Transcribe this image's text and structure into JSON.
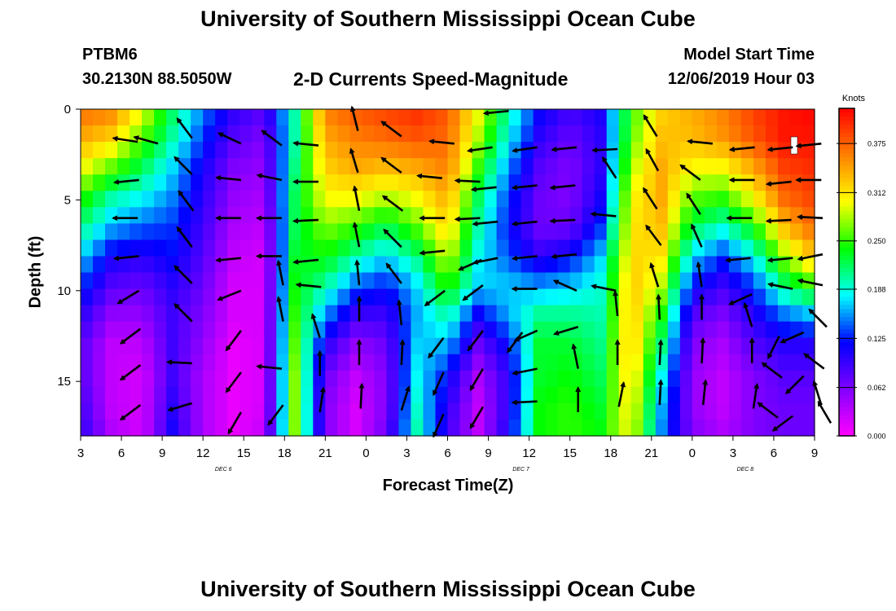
{
  "header": {
    "title": "University of Southern Mississippi Ocean Cube",
    "station": "PTBM6",
    "coords": "30.2130N 88.5050W",
    "plot_title": "2-D Currents Speed-Magnitude",
    "model_start_label": "Model Start Time",
    "model_start_value": "12/06/2019 Hour 03"
  },
  "footer": {
    "title": "University of Southern Mississippi Ocean Cube"
  },
  "chart_data": {
    "type": "heatmap",
    "title": "2-D Currents Speed-Magnitude",
    "xlabel": "Forecast Time(Z)",
    "ylabel": "Depth (ft)",
    "x_ticks": [
      "3",
      "6",
      "9",
      "12",
      "15",
      "18",
      "21",
      "0",
      "3",
      "6",
      "9",
      "12",
      "15",
      "18",
      "21",
      "0",
      "3",
      "6",
      "9"
    ],
    "date_labels": [
      {
        "label": "DEC 6",
        "tick_index": 3.5
      },
      {
        "label": "DEC 7",
        "tick_index": 10.8
      },
      {
        "label": "DEC 8",
        "tick_index": 16.3
      }
    ],
    "y_ticks": [
      0,
      5,
      10,
      15
    ],
    "ylim": [
      0,
      18
    ],
    "y_reversed": true,
    "colorbar": {
      "unit": "Knots",
      "ticks": [
        "0.000",
        "0.062",
        "0.125",
        "0.188",
        "0.250",
        "0.312",
        "0.375"
      ],
      "range": [
        0,
        0.42
      ],
      "colors": [
        "#ff00ff",
        "#8000ff",
        "#0000ff",
        "#00ffff",
        "#00ff00",
        "#ffff00",
        "#ff8000",
        "#ff0000"
      ]
    },
    "speed_rows": [
      [
        0.37,
        0.36,
        0.3,
        0.22,
        0.15,
        0.1,
        0.08,
        0.2,
        0.36,
        0.38,
        0.39,
        0.4,
        0.38,
        0.3,
        0.2,
        0.12,
        0.09,
        0.11,
        0.25,
        0.32,
        0.34,
        0.36,
        0.39,
        0.41,
        0.42
      ],
      [
        0.34,
        0.32,
        0.26,
        0.2,
        0.13,
        0.08,
        0.06,
        0.2,
        0.34,
        0.36,
        0.37,
        0.38,
        0.37,
        0.28,
        0.18,
        0.1,
        0.07,
        0.1,
        0.26,
        0.33,
        0.33,
        0.35,
        0.38,
        0.41,
        0.41
      ],
      [
        0.3,
        0.26,
        0.22,
        0.17,
        0.11,
        0.06,
        0.05,
        0.21,
        0.32,
        0.34,
        0.33,
        0.34,
        0.36,
        0.25,
        0.15,
        0.08,
        0.06,
        0.1,
        0.28,
        0.34,
        0.3,
        0.3,
        0.34,
        0.39,
        0.4
      ],
      [
        0.25,
        0.2,
        0.18,
        0.15,
        0.1,
        0.05,
        0.04,
        0.22,
        0.3,
        0.3,
        0.28,
        0.3,
        0.34,
        0.22,
        0.13,
        0.07,
        0.06,
        0.11,
        0.3,
        0.34,
        0.26,
        0.25,
        0.3,
        0.37,
        0.39
      ],
      [
        0.21,
        0.16,
        0.14,
        0.13,
        0.09,
        0.04,
        0.03,
        0.22,
        0.27,
        0.25,
        0.22,
        0.26,
        0.32,
        0.2,
        0.12,
        0.07,
        0.07,
        0.13,
        0.31,
        0.33,
        0.22,
        0.19,
        0.24,
        0.33,
        0.37
      ],
      [
        0.17,
        0.11,
        0.1,
        0.12,
        0.08,
        0.03,
        0.02,
        0.23,
        0.24,
        0.2,
        0.17,
        0.21,
        0.29,
        0.18,
        0.14,
        0.1,
        0.12,
        0.17,
        0.32,
        0.31,
        0.17,
        0.13,
        0.18,
        0.27,
        0.33
      ],
      [
        0.13,
        0.08,
        0.07,
        0.1,
        0.07,
        0.02,
        0.02,
        0.24,
        0.2,
        0.14,
        0.12,
        0.17,
        0.25,
        0.17,
        0.17,
        0.16,
        0.17,
        0.19,
        0.33,
        0.28,
        0.12,
        0.09,
        0.13,
        0.21,
        0.25
      ],
      [
        0.1,
        0.05,
        0.05,
        0.09,
        0.06,
        0.02,
        0.02,
        0.25,
        0.15,
        0.09,
        0.09,
        0.16,
        0.2,
        0.11,
        0.16,
        0.21,
        0.21,
        0.2,
        0.33,
        0.24,
        0.08,
        0.06,
        0.1,
        0.14,
        0.16
      ],
      [
        0.08,
        0.03,
        0.03,
        0.09,
        0.05,
        0.01,
        0.02,
        0.26,
        0.1,
        0.05,
        0.07,
        0.17,
        0.16,
        0.07,
        0.12,
        0.23,
        0.23,
        0.21,
        0.33,
        0.21,
        0.06,
        0.04,
        0.08,
        0.1,
        0.1
      ],
      [
        0.08,
        0.03,
        0.02,
        0.09,
        0.04,
        0.01,
        0.02,
        0.27,
        0.07,
        0.03,
        0.06,
        0.18,
        0.12,
        0.04,
        0.1,
        0.23,
        0.24,
        0.22,
        0.32,
        0.18,
        0.05,
        0.03,
        0.06,
        0.08,
        0.08
      ],
      [
        0.09,
        0.03,
        0.02,
        0.1,
        0.04,
        0.01,
        0.02,
        0.27,
        0.06,
        0.02,
        0.06,
        0.19,
        0.1,
        0.03,
        0.1,
        0.24,
        0.25,
        0.23,
        0.31,
        0.16,
        0.05,
        0.03,
        0.06,
        0.07,
        0.07
      ],
      [
        0.1,
        0.04,
        0.02,
        0.11,
        0.04,
        0.01,
        0.03,
        0.27,
        0.06,
        0.02,
        0.07,
        0.2,
        0.09,
        0.03,
        0.11,
        0.24,
        0.25,
        0.24,
        0.3,
        0.15,
        0.06,
        0.04,
        0.06,
        0.07,
        0.07
      ]
    ]
  },
  "icons": {
    "arrow": "vector-arrow-icon",
    "ice_marker": "white-marker"
  },
  "vector_arrows": [
    {
      "t": 4.2,
      "d": 1.8,
      "dx": -1,
      "dy": -0.15
    },
    {
      "t": 5.7,
      "d": 1.9,
      "dx": -0.9,
      "dy": -0.25
    },
    {
      "t": 8.2,
      "d": 1.6,
      "dx": -0.6,
      "dy": -0.8
    },
    {
      "t": 11.8,
      "d": 1.9,
      "dx": -0.85,
      "dy": -0.4
    },
    {
      "t": 14.8,
      "d": 2.0,
      "dx": -0.8,
      "dy": -0.6
    },
    {
      "t": 17.5,
      "d": 2.0,
      "dx": -1,
      "dy": -0.1
    },
    {
      "t": 20.4,
      "d": 1.2,
      "dx": -0.25,
      "dy": -1
    },
    {
      "t": 23.6,
      "d": 1.5,
      "dx": -0.8,
      "dy": -0.6
    },
    {
      "t": 27.5,
      "d": 1.9,
      "dx": -1,
      "dy": -0.1
    },
    {
      "t": 30.3,
      "d": 2.1,
      "dx": -1,
      "dy": 0.15
    },
    {
      "t": 31.5,
      "d": 0.1,
      "dx": -1,
      "dy": 0.1
    },
    {
      "t": 33.6,
      "d": 2.1,
      "dx": -1,
      "dy": 0.15
    },
    {
      "t": 36.5,
      "d": 2.1,
      "dx": -1,
      "dy": 0.1
    },
    {
      "t": 39.5,
      "d": 2.2,
      "dx": -1,
      "dy": 0.05
    },
    {
      "t": 42.4,
      "d": 1.5,
      "dx": -0.55,
      "dy": -0.9
    },
    {
      "t": 46.5,
      "d": 1.9,
      "dx": -1,
      "dy": -0.1
    },
    {
      "t": 49.6,
      "d": 2.1,
      "dx": -1,
      "dy": 0.1
    },
    {
      "t": 52.4,
      "d": 2.1,
      "dx": -1,
      "dy": 0.1
    },
    {
      "t": 54.5,
      "d": 1.9,
      "dx": -1,
      "dy": 0.1
    },
    {
      "t": 4.3,
      "d": 3.9,
      "dx": -1,
      "dy": 0.1
    },
    {
      "t": 8.2,
      "d": 3.6,
      "dx": -0.7,
      "dy": -0.7
    },
    {
      "t": 11.8,
      "d": 3.9,
      "dx": -1,
      "dy": -0.1
    },
    {
      "t": 14.8,
      "d": 3.9,
      "dx": -1,
      "dy": -0.2
    },
    {
      "t": 17.5,
      "d": 4.0,
      "dx": -1,
      "dy": 0
    },
    {
      "t": 20.4,
      "d": 3.5,
      "dx": -0.3,
      "dy": -1
    },
    {
      "t": 23.6,
      "d": 3.5,
      "dx": -0.8,
      "dy": -0.6
    },
    {
      "t": 26.6,
      "d": 3.8,
      "dx": -1,
      "dy": -0.1
    },
    {
      "t": 29.4,
      "d": 4.0,
      "dx": -1,
      "dy": -0.05
    },
    {
      "t": 30.6,
      "d": 4.3,
      "dx": -1,
      "dy": 0.1
    },
    {
      "t": 33.6,
      "d": 4.2,
      "dx": -1,
      "dy": 0.1
    },
    {
      "t": 36.4,
      "d": 4.2,
      "dx": -1,
      "dy": 0.1
    },
    {
      "t": 39.4,
      "d": 3.8,
      "dx": -0.55,
      "dy": -0.85
    },
    {
      "t": 42.5,
      "d": 3.4,
      "dx": -0.5,
      "dy": -0.9
    },
    {
      "t": 45.6,
      "d": 3.9,
      "dx": -0.8,
      "dy": -0.6
    },
    {
      "t": 49.6,
      "d": 3.9,
      "dx": -1,
      "dy": 0
    },
    {
      "t": 52.3,
      "d": 4.0,
      "dx": -1,
      "dy": 0.1
    },
    {
      "t": 54.5,
      "d": 3.9,
      "dx": -1,
      "dy": 0
    },
    {
      "t": 4.2,
      "d": 6.0,
      "dx": -1,
      "dy": 0
    },
    {
      "t": 8.3,
      "d": 5.6,
      "dx": -0.6,
      "dy": -0.8
    },
    {
      "t": 11.8,
      "d": 6.0,
      "dx": -1,
      "dy": 0
    },
    {
      "t": 14.8,
      "d": 6.0,
      "dx": -1,
      "dy": 0
    },
    {
      "t": 17.5,
      "d": 6.1,
      "dx": -1,
      "dy": 0.05
    },
    {
      "t": 20.5,
      "d": 5.6,
      "dx": -0.2,
      "dy": -1
    },
    {
      "t": 23.7,
      "d": 5.6,
      "dx": -0.8,
      "dy": -0.6
    },
    {
      "t": 26.8,
      "d": 6.0,
      "dx": -1,
      "dy": 0
    },
    {
      "t": 29.4,
      "d": 6.0,
      "dx": -1,
      "dy": 0.05
    },
    {
      "t": 30.7,
      "d": 6.2,
      "dx": -1,
      "dy": 0.1
    },
    {
      "t": 33.6,
      "d": 6.2,
      "dx": -1,
      "dy": 0.1
    },
    {
      "t": 36.4,
      "d": 6.1,
      "dx": -1,
      "dy": 0.05
    },
    {
      "t": 39.4,
      "d": 5.9,
      "dx": -1,
      "dy": -0.1
    },
    {
      "t": 42.4,
      "d": 5.5,
      "dx": -0.55,
      "dy": -0.85
    },
    {
      "t": 45.6,
      "d": 5.8,
      "dx": -0.55,
      "dy": -0.85
    },
    {
      "t": 49.4,
      "d": 6.0,
      "dx": -1,
      "dy": 0
    },
    {
      "t": 52.3,
      "d": 6.1,
      "dx": -1,
      "dy": 0.05
    },
    {
      "t": 54.6,
      "d": 6.0,
      "dx": -1,
      "dy": -0.05
    },
    {
      "t": 4.3,
      "d": 8.1,
      "dx": -1,
      "dy": 0.1
    },
    {
      "t": 8.2,
      "d": 7.6,
      "dx": -0.6,
      "dy": -0.8
    },
    {
      "t": 11.8,
      "d": 8.2,
      "dx": -1,
      "dy": 0.1
    },
    {
      "t": 14.8,
      "d": 8.1,
      "dx": -1,
      "dy": 0
    },
    {
      "t": 17.5,
      "d": 8.3,
      "dx": -1,
      "dy": 0.1
    },
    {
      "t": 20.5,
      "d": 7.6,
      "dx": -0.2,
      "dy": -1
    },
    {
      "t": 23.6,
      "d": 7.6,
      "dx": -0.7,
      "dy": -0.7
    },
    {
      "t": 26.8,
      "d": 7.8,
      "dx": -1,
      "dy": 0.1
    },
    {
      "t": 29.5,
      "d": 8.3,
      "dx": -0.9,
      "dy": 0.4
    },
    {
      "t": 30.7,
      "d": 8.2,
      "dx": -1,
      "dy": 0.2
    },
    {
      "t": 33.6,
      "d": 8.1,
      "dx": -1,
      "dy": 0.1
    },
    {
      "t": 36.5,
      "d": 8.0,
      "dx": -1,
      "dy": 0.1
    },
    {
      "t": 42.7,
      "d": 7.5,
      "dx": -0.6,
      "dy": -0.8
    },
    {
      "t": 45.7,
      "d": 7.6,
      "dx": -0.4,
      "dy": -0.9
    },
    {
      "t": 49.3,
      "d": 8.2,
      "dx": -1,
      "dy": 0.1
    },
    {
      "t": 52.4,
      "d": 8.2,
      "dx": -1,
      "dy": 0.1
    },
    {
      "t": 54.6,
      "d": 8.0,
      "dx": -1,
      "dy": 0.2
    },
    {
      "t": 4.3,
      "d": 10.0,
      "dx": -1,
      "dy": 0.6
    },
    {
      "t": 8.2,
      "d": 9.6,
      "dx": -0.7,
      "dy": -0.7
    },
    {
      "t": 11.8,
      "d": 10.0,
      "dx": -1,
      "dy": 0.4
    },
    {
      "t": 14.9,
      "d": 9.7,
      "dx": -0.2,
      "dy": -1
    },
    {
      "t": 17.7,
      "d": 9.8,
      "dx": -1,
      "dy": -0.1
    },
    {
      "t": 20.5,
      "d": 9.7,
      "dx": -0.1,
      "dy": -1
    },
    {
      "t": 23.6,
      "d": 9.6,
      "dx": -0.6,
      "dy": -0.8
    },
    {
      "t": 26.8,
      "d": 10.0,
      "dx": -0.8,
      "dy": 0.6
    },
    {
      "t": 29.6,
      "d": 9.7,
      "dx": -0.8,
      "dy": 0.6
    },
    {
      "t": 33.6,
      "d": 9.9,
      "dx": -1,
      "dy": 0
    },
    {
      "t": 36.5,
      "d": 10.0,
      "dx": -0.9,
      "dy": -0.4
    },
    {
      "t": 39.4,
      "d": 10.0,
      "dx": -1,
      "dy": -0.2
    },
    {
      "t": 42.5,
      "d": 9.8,
      "dx": -0.3,
      "dy": -0.95
    },
    {
      "t": 45.7,
      "d": 9.8,
      "dx": -0.15,
      "dy": -1
    },
    {
      "t": 49.4,
      "d": 10.2,
      "dx": -0.9,
      "dy": 0.4
    },
    {
      "t": 52.4,
      "d": 9.9,
      "dx": -1,
      "dy": -0.2
    },
    {
      "t": 54.6,
      "d": 9.7,
      "dx": -1,
      "dy": -0.2
    },
    {
      "t": 4.4,
      "d": 12.1,
      "dx": -0.8,
      "dy": 0.6
    },
    {
      "t": 8.2,
      "d": 11.7,
      "dx": -0.7,
      "dy": -0.7
    },
    {
      "t": 11.8,
      "d": 12.2,
      "dx": -0.6,
      "dy": 0.8
    },
    {
      "t": 14.9,
      "d": 11.7,
      "dx": -0.2,
      "dy": -1
    },
    {
      "t": 17.6,
      "d": 12.6,
      "dx": -0.3,
      "dy": -0.95
    },
    {
      "t": 20.5,
      "d": 11.7,
      "dx": 0,
      "dy": -1
    },
    {
      "t": 23.6,
      "d": 11.9,
      "dx": -0.1,
      "dy": -1
    },
    {
      "t": 26.7,
      "d": 12.6,
      "dx": -0.6,
      "dy": 0.8
    },
    {
      "t": 29.6,
      "d": 12.2,
      "dx": -0.6,
      "dy": 0.8
    },
    {
      "t": 32.5,
      "d": 12.3,
      "dx": -0.6,
      "dy": 0.8
    },
    {
      "t": 33.6,
      "d": 12.2,
      "dx": -0.9,
      "dy": 0.4
    },
    {
      "t": 36.6,
      "d": 12.0,
      "dx": -1,
      "dy": 0.3
    },
    {
      "t": 39.5,
      "d": 11.4,
      "dx": -0.1,
      "dy": -1
    },
    {
      "t": 42.6,
      "d": 11.6,
      "dx": -0.05,
      "dy": -1
    },
    {
      "t": 45.7,
      "d": 11.6,
      "dx": 0,
      "dy": -1
    },
    {
      "t": 49.4,
      "d": 12.0,
      "dx": -0.3,
      "dy": -0.95
    },
    {
      "t": 51.4,
      "d": 12.5,
      "dx": -0.45,
      "dy": 0.9
    },
    {
      "t": 53.2,
      "d": 12.3,
      "dx": -0.9,
      "dy": 0.4
    },
    {
      "t": 54.9,
      "d": 12.0,
      "dx": -0.7,
      "dy": -0.7
    },
    {
      "t": 4.4,
      "d": 14.1,
      "dx": -0.8,
      "dy": 0.6
    },
    {
      "t": 8.2,
      "d": 14.0,
      "dx": -1,
      "dy": -0.05
    },
    {
      "t": 11.8,
      "d": 14.5,
      "dx": -0.6,
      "dy": 0.8
    },
    {
      "t": 14.8,
      "d": 14.3,
      "dx": -1,
      "dy": -0.1
    },
    {
      "t": 17.6,
      "d": 14.7,
      "dx": 0,
      "dy": -1
    },
    {
      "t": 20.5,
      "d": 14.1,
      "dx": 0,
      "dy": -1
    },
    {
      "t": 23.6,
      "d": 14.1,
      "dx": 0.05,
      "dy": -1
    },
    {
      "t": 26.7,
      "d": 14.5,
      "dx": -0.4,
      "dy": 0.9
    },
    {
      "t": 29.6,
      "d": 14.3,
      "dx": -0.5,
      "dy": 0.85
    },
    {
      "t": 33.6,
      "d": 14.3,
      "dx": -1,
      "dy": 0.2
    },
    {
      "t": 36.6,
      "d": 14.3,
      "dx": -0.2,
      "dy": -1
    },
    {
      "t": 39.5,
      "d": 14.1,
      "dx": 0,
      "dy": -1
    },
    {
      "t": 42.6,
      "d": 14.1,
      "dx": 0.05,
      "dy": -1
    },
    {
      "t": 45.7,
      "d": 14.0,
      "dx": 0.05,
      "dy": -1
    },
    {
      "t": 49.4,
      "d": 14.0,
      "dx": 0,
      "dy": -1
    },
    {
      "t": 51.6,
      "d": 14.8,
      "dx": -0.8,
      "dy": -0.6
    },
    {
      "t": 53.2,
      "d": 14.7,
      "dx": -0.7,
      "dy": 0.7
    },
    {
      "t": 54.7,
      "d": 14.3,
      "dx": -0.8,
      "dy": -0.6
    },
    {
      "t": 4.4,
      "d": 16.3,
      "dx": -0.8,
      "dy": 0.6
    },
    {
      "t": 8.2,
      "d": 16.2,
      "dx": -1,
      "dy": 0.3
    },
    {
      "t": 11.8,
      "d": 16.7,
      "dx": -0.5,
      "dy": 0.85
    },
    {
      "t": 14.9,
      "d": 16.3,
      "dx": -0.6,
      "dy": 0.8
    },
    {
      "t": 17.6,
      "d": 16.7,
      "dx": 0.15,
      "dy": -1
    },
    {
      "t": 20.6,
      "d": 16.5,
      "dx": 0.05,
      "dy": -1
    },
    {
      "t": 23.6,
      "d": 16.6,
      "dx": 0.3,
      "dy": -0.95
    },
    {
      "t": 26.7,
      "d": 16.8,
      "dx": -0.4,
      "dy": 0.9
    },
    {
      "t": 29.6,
      "d": 16.4,
      "dx": -0.5,
      "dy": 0.85
    },
    {
      "t": 33.6,
      "d": 16.1,
      "dx": -1,
      "dy": 0.05
    },
    {
      "t": 36.6,
      "d": 16.7,
      "dx": 0,
      "dy": -1
    },
    {
      "t": 39.6,
      "d": 16.4,
      "dx": 0.2,
      "dy": -1
    },
    {
      "t": 42.6,
      "d": 16.3,
      "dx": 0.05,
      "dy": -1
    },
    {
      "t": 45.8,
      "d": 16.3,
      "dx": 0.1,
      "dy": -1
    },
    {
      "t": 49.5,
      "d": 16.5,
      "dx": 0.15,
      "dy": -1
    },
    {
      "t": 51.3,
      "d": 17.0,
      "dx": -0.8,
      "dy": -0.6
    },
    {
      "t": 52.4,
      "d": 16.9,
      "dx": -0.8,
      "dy": 0.6
    },
    {
      "t": 54.5,
      "d": 16.3,
      "dx": -0.3,
      "dy": -0.95
    },
    {
      "t": 55.2,
      "d": 17.3,
      "dx": -0.5,
      "dy": -0.85
    }
  ]
}
